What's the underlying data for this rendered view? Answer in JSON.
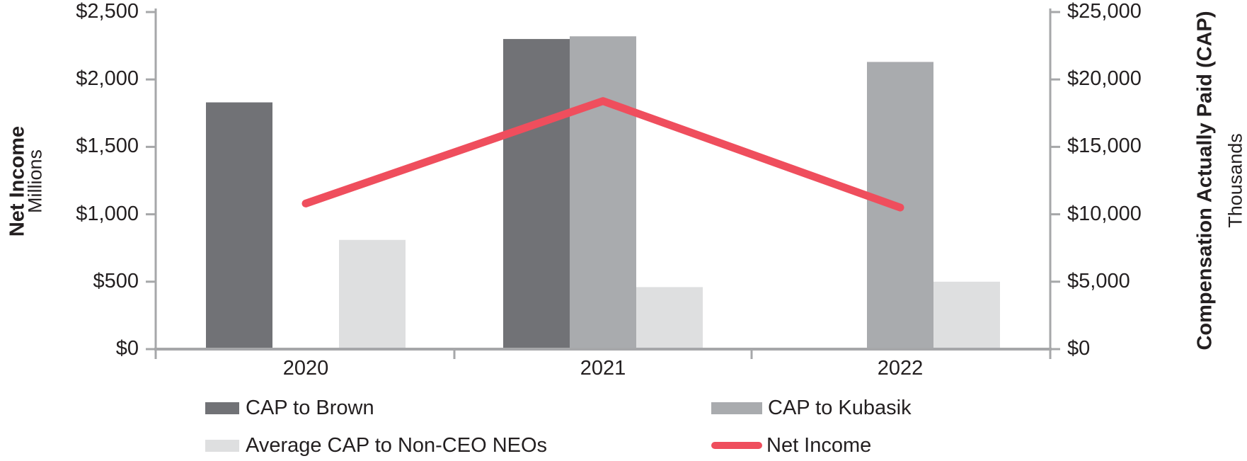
{
  "chart_data": {
    "type": "combo-bar-line",
    "categories": [
      "2020",
      "2021",
      "2022"
    ],
    "bar_series": [
      {
        "name": "CAP to Brown",
        "axis": "right",
        "color": "#717276",
        "values": [
          18300,
          23000,
          null
        ]
      },
      {
        "name": "CAP to Kubasik",
        "axis": "right",
        "color": "#a9abae",
        "values": [
          null,
          23200,
          21300
        ]
      },
      {
        "name": "Average CAP to Non-CEO NEOs",
        "axis": "right",
        "color": "#dedfe0",
        "values": [
          8100,
          4600,
          5000
        ]
      }
    ],
    "line_series": [
      {
        "name": "Net Income",
        "axis": "left",
        "color": "#ef4e5d",
        "values": [
          1080,
          1840,
          1050
        ]
      }
    ],
    "left_axis": {
      "title": "Net Income",
      "subtitle": "Millions",
      "min": 0,
      "max": 2500,
      "ticks": [
        "$2,500",
        "$2,000",
        "$1,500",
        "$1,000",
        "$500",
        "$0"
      ]
    },
    "right_axis": {
      "title": "Compensation Actually Paid (CAP)",
      "subtitle": "Thousands",
      "min": 0,
      "max": 25000,
      "ticks": [
        "$25,000",
        "$20,000",
        "$15,000",
        "$10,000",
        "$5,000",
        "$0"
      ]
    },
    "legend_position": "bottom",
    "grid": false,
    "colors": {
      "axis_line": "#a6a7a9",
      "text": "#231f20"
    }
  }
}
